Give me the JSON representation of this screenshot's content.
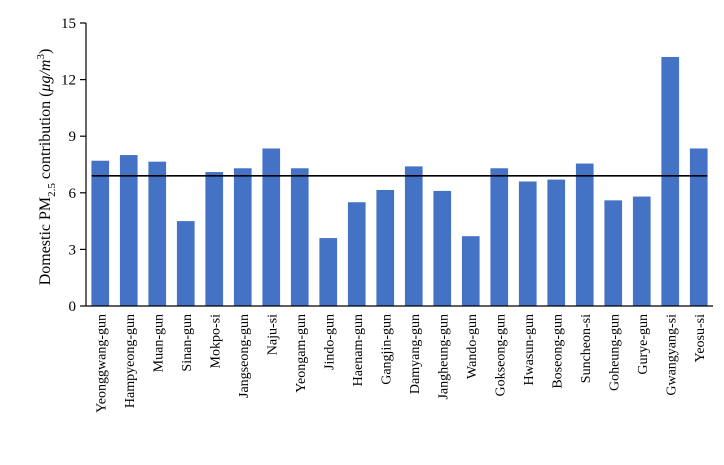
{
  "chart_data": {
    "type": "bar",
    "title": "",
    "xlabel": "",
    "ylabel": {
      "prefix": "Domestic PM",
      "sub": "2.5",
      "suffix": " contribution (",
      "unit_main": "μg/m",
      "unit_sup": "3",
      "close": ")"
    },
    "ylim": [
      0,
      15
    ],
    "yticks": [
      "0",
      "3",
      "6",
      "9",
      "12",
      "15"
    ],
    "categories": [
      "Yeonggwang-gun",
      "Hampyeong-gun",
      "Muan-gun",
      "Sinan-gun",
      "Mokpo-si",
      "Jangseong-gun",
      "Naju-si",
      "Yeongam-gun",
      "Jindo-gun",
      "Haenam-gun",
      "Gangjin-gun",
      "Damyang-gun",
      "Jangheung-gun",
      "Wando-gun",
      "Gokseong-gun",
      "Hwasun-gun",
      "Boseong-gun",
      "Suncheon-si",
      "Goheung-gun",
      "Gurye-gun",
      "Gwangyang-si",
      "Yeosu-si"
    ],
    "values": [
      7.7,
      8.0,
      7.65,
      4.5,
      7.1,
      7.3,
      8.35,
      7.3,
      3.6,
      5.5,
      6.15,
      7.4,
      6.1,
      3.7,
      7.3,
      6.6,
      6.7,
      7.55,
      5.6,
      5.8,
      13.2,
      8.35
    ],
    "reference_line": 6.9,
    "bar_color": "#4472C4",
    "grid": false,
    "legend": "none"
  }
}
